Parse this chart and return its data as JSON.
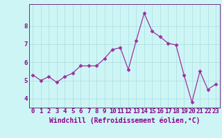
{
  "x": [
    0,
    1,
    2,
    3,
    4,
    5,
    6,
    7,
    8,
    9,
    10,
    11,
    12,
    13,
    14,
    15,
    16,
    17,
    18,
    19,
    20,
    21,
    22,
    23
  ],
  "y": [
    5.3,
    5.0,
    5.2,
    4.9,
    5.2,
    5.4,
    5.8,
    5.8,
    5.8,
    6.2,
    6.7,
    6.8,
    5.6,
    7.2,
    8.7,
    7.7,
    7.4,
    7.05,
    6.95,
    5.3,
    3.8,
    5.5,
    4.5,
    4.8
  ],
  "line_color": "#9b30a0",
  "marker": "D",
  "marker_size": 2.5,
  "bg_color": "#cef5f5",
  "grid_color": "#aadddd",
  "xlabel": "Windchill (Refroidissement éolien,°C)",
  "xlim": [
    -0.5,
    23.5
  ],
  "ylim": [
    3.5,
    9.2
  ],
  "yticks": [
    4,
    5,
    6,
    7,
    8
  ],
  "xticks": [
    0,
    1,
    2,
    3,
    4,
    5,
    6,
    7,
    8,
    9,
    10,
    11,
    12,
    13,
    14,
    15,
    16,
    17,
    18,
    19,
    20,
    21,
    22,
    23
  ],
  "axis_color": "#6a2d82",
  "tick_color": "#8b008b",
  "label_fontsize": 7,
  "tick_fontsize": 6.5
}
